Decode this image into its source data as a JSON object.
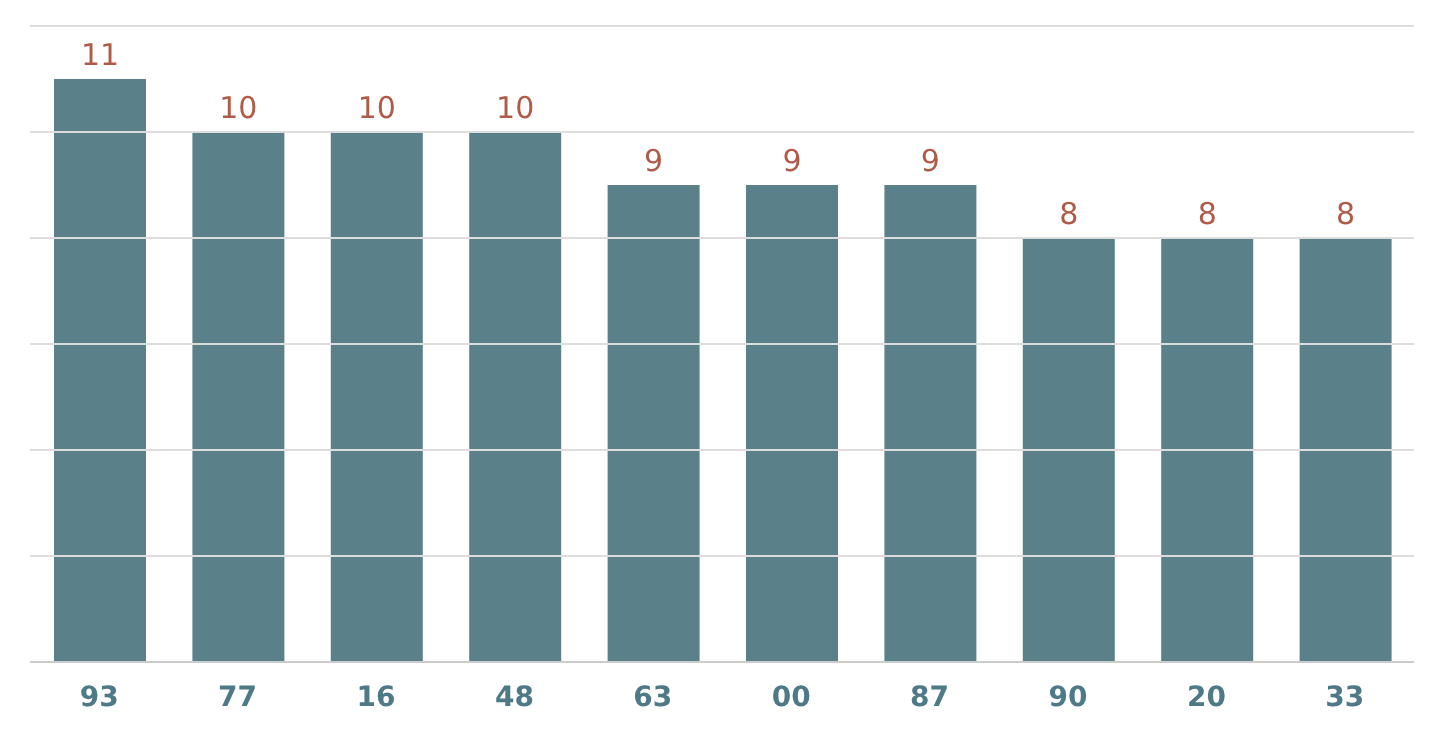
{
  "chart_data": {
    "type": "bar",
    "categories": [
      "93",
      "77",
      "16",
      "48",
      "63",
      "00",
      "87",
      "90",
      "20",
      "33"
    ],
    "values": [
      11,
      10,
      10,
      10,
      9,
      9,
      9,
      8,
      8,
      8
    ],
    "color": "#5a8189",
    "data_labels": true,
    "ylim": [
      0,
      12
    ],
    "yticks": [
      {
        "value": 0,
        "label": null
      },
      {
        "value": 2,
        "label": null
      },
      {
        "value": 4,
        "label": null
      },
      {
        "value": 6,
        "label": null
      },
      {
        "value": 8,
        "label": null
      },
      {
        "value": 10,
        "label": null
      },
      {
        "value": 12,
        "label": null
      }
    ],
    "grid": "y",
    "tick_labels": "x"
  }
}
